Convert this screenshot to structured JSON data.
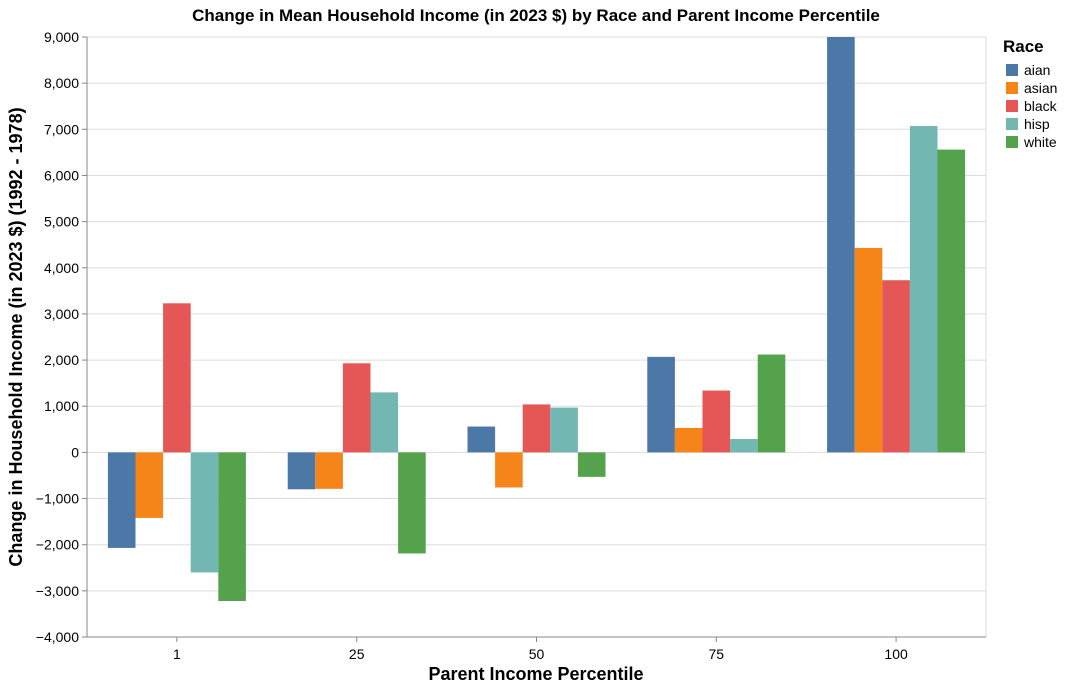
{
  "chart_data": {
    "type": "bar",
    "title": "Change in Mean Household Income (in 2023 $) by Race and Parent Income Percentile",
    "xlabel": "Parent Income Percentile",
    "ylabel": "Change in Household Income (in 2023 $) (1992 - 1978)",
    "categories": [
      "1",
      "25",
      "50",
      "75",
      "100"
    ],
    "ylim": [
      -4000,
      9000
    ],
    "yticks": [
      -4000,
      -3000,
      -2000,
      -1000,
      0,
      1000,
      2000,
      3000,
      4000,
      5000,
      6000,
      7000,
      8000,
      9000
    ],
    "ytick_labels": [
      "−4,000",
      "−3,000",
      "−2,000",
      "−1,000",
      "0",
      "1,000",
      "2,000",
      "3,000",
      "4,000",
      "5,000",
      "6,000",
      "7,000",
      "8,000",
      "9,000"
    ],
    "grid": true,
    "legend": {
      "title": "Race",
      "placement": "top-right"
    },
    "series": [
      {
        "name": "aian",
        "color": "#4c78a8",
        "values": [
          -2070,
          -800,
          560,
          2070,
          9000
        ]
      },
      {
        "name": "asian",
        "color": "#f58518",
        "values": [
          -1420,
          -790,
          -760,
          530,
          4430
        ]
      },
      {
        "name": "black",
        "color": "#e45756",
        "values": [
          3230,
          1930,
          1040,
          1340,
          3730
        ]
      },
      {
        "name": "hisp",
        "color": "#72b7b2",
        "values": [
          -2600,
          1300,
          970,
          290,
          7070
        ]
      },
      {
        "name": "white",
        "color": "#54a24b",
        "values": [
          -3220,
          -2190,
          -530,
          2120,
          6560
        ]
      }
    ]
  }
}
